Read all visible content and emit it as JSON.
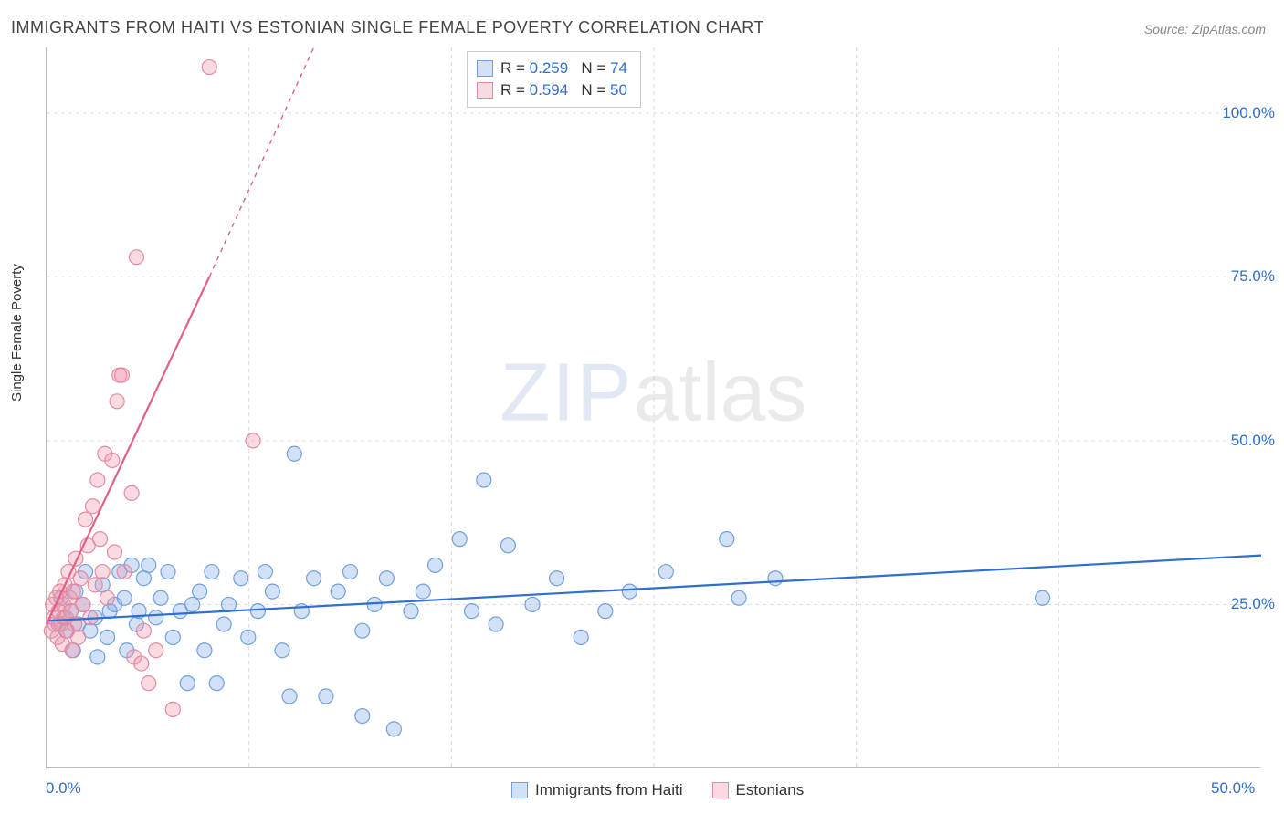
{
  "title": "IMMIGRANTS FROM HAITI VS ESTONIAN SINGLE FEMALE POVERTY CORRELATION CHART",
  "source": "Source: ZipAtlas.com",
  "ylabel": "Single Female Poverty",
  "watermark": {
    "part1": "ZIP",
    "part2": "atlas"
  },
  "chart": {
    "type": "scatter",
    "xlim": [
      0,
      50
    ],
    "ylim": [
      0,
      110
    ],
    "xticks": [
      0.0,
      50.0
    ],
    "xtick_labels": [
      "0.0%",
      "50.0%"
    ],
    "yticks": [
      25.0,
      50.0,
      75.0,
      100.0
    ],
    "ytick_labels": [
      "25.0%",
      "50.0%",
      "75.0%",
      "100.0%"
    ],
    "vgrid_at": [
      8.33,
      16.67,
      25.0,
      33.33,
      41.67
    ],
    "grid_color": "#dddddd",
    "axis_color": "#bbbbbb",
    "background_color": "#ffffff",
    "marker_radius": 8,
    "marker_stroke_width": 1.2,
    "line_width": 2.2,
    "series": [
      {
        "name": "Immigrants from Haiti",
        "color_fill": "rgba(130,170,230,0.35)",
        "color_stroke": "#6fa0e0",
        "line_color": "#2f6fd0",
        "R": "0.259",
        "N": "74",
        "trend": {
          "x1": 0,
          "y1": 22.5,
          "x2": 50,
          "y2": 32.5
        },
        "points": [
          [
            0.5,
            22
          ],
          [
            0.7,
            23
          ],
          [
            0.6,
            26
          ],
          [
            0.8,
            21
          ],
          [
            1.0,
            24
          ],
          [
            1.1,
            18
          ],
          [
            1.2,
            27
          ],
          [
            1.3,
            22
          ],
          [
            1.5,
            25
          ],
          [
            1.6,
            30
          ],
          [
            1.8,
            21
          ],
          [
            2.0,
            23
          ],
          [
            2.1,
            17
          ],
          [
            2.3,
            28
          ],
          [
            2.5,
            20
          ],
          [
            2.6,
            24
          ],
          [
            2.8,
            25
          ],
          [
            3.0,
            30
          ],
          [
            3.2,
            26
          ],
          [
            3.3,
            18
          ],
          [
            3.5,
            31
          ],
          [
            3.7,
            22
          ],
          [
            3.8,
            24
          ],
          [
            4.0,
            29
          ],
          [
            4.2,
            31
          ],
          [
            4.5,
            23
          ],
          [
            4.7,
            26
          ],
          [
            5.0,
            30
          ],
          [
            5.2,
            20
          ],
          [
            5.5,
            24
          ],
          [
            5.8,
            13
          ],
          [
            6.0,
            25
          ],
          [
            6.3,
            27
          ],
          [
            6.5,
            18
          ],
          [
            6.8,
            30
          ],
          [
            7.0,
            13
          ],
          [
            7.3,
            22
          ],
          [
            7.5,
            25
          ],
          [
            8.0,
            29
          ],
          [
            8.3,
            20
          ],
          [
            8.7,
            24
          ],
          [
            9.0,
            30
          ],
          [
            9.3,
            27
          ],
          [
            9.7,
            18
          ],
          [
            10.0,
            11
          ],
          [
            10.2,
            48
          ],
          [
            10.5,
            24
          ],
          [
            11.0,
            29
          ],
          [
            11.5,
            11
          ],
          [
            12.0,
            27
          ],
          [
            12.5,
            30
          ],
          [
            13.0,
            21
          ],
          [
            13.5,
            25
          ],
          [
            13.0,
            8
          ],
          [
            14.0,
            29
          ],
          [
            14.3,
            6
          ],
          [
            15.0,
            24
          ],
          [
            15.5,
            27
          ],
          [
            16.0,
            31
          ],
          [
            17.0,
            35
          ],
          [
            17.5,
            24
          ],
          [
            18.0,
            44
          ],
          [
            18.5,
            22
          ],
          [
            19.0,
            34
          ],
          [
            20.0,
            25
          ],
          [
            21.0,
            29
          ],
          [
            22.0,
            20
          ],
          [
            23.0,
            24
          ],
          [
            24.0,
            27
          ],
          [
            25.5,
            30
          ],
          [
            28.0,
            35
          ],
          [
            28.5,
            26
          ],
          [
            30.0,
            29
          ],
          [
            41.0,
            26
          ]
        ]
      },
      {
        "name": "Estonians",
        "color_fill": "rgba(240,150,170,0.35)",
        "color_stroke": "#e48aa0",
        "line_color": "#e06088",
        "R": "0.594",
        "N": "50",
        "trend": {
          "x1": 0,
          "y1": 22,
          "x2": 6.7,
          "y2": 75
        },
        "trend_dash": {
          "x1": 6.7,
          "y1": 75,
          "x2": 11,
          "y2": 110
        },
        "points": [
          [
            0.2,
            21
          ],
          [
            0.3,
            23
          ],
          [
            0.25,
            25
          ],
          [
            0.35,
            22
          ],
          [
            0.4,
            26
          ],
          [
            0.45,
            20
          ],
          [
            0.5,
            24
          ],
          [
            0.55,
            27
          ],
          [
            0.6,
            22
          ],
          [
            0.65,
            19
          ],
          [
            0.7,
            25
          ],
          [
            0.75,
            28
          ],
          [
            0.8,
            23
          ],
          [
            0.85,
            21
          ],
          [
            0.9,
            30
          ],
          [
            0.95,
            26
          ],
          [
            1.0,
            24
          ],
          [
            1.05,
            18
          ],
          [
            1.1,
            27
          ],
          [
            1.15,
            22
          ],
          [
            1.2,
            32
          ],
          [
            1.3,
            20
          ],
          [
            1.4,
            29
          ],
          [
            1.5,
            25
          ],
          [
            1.6,
            38
          ],
          [
            1.7,
            34
          ],
          [
            1.8,
            23
          ],
          [
            1.9,
            40
          ],
          [
            2.0,
            28
          ],
          [
            2.1,
            44
          ],
          [
            2.2,
            35
          ],
          [
            2.3,
            30
          ],
          [
            2.4,
            48
          ],
          [
            2.5,
            26
          ],
          [
            2.7,
            47
          ],
          [
            2.8,
            33
          ],
          [
            2.9,
            56
          ],
          [
            3.0,
            60
          ],
          [
            3.1,
            60
          ],
          [
            3.2,
            30
          ],
          [
            3.5,
            42
          ],
          [
            3.6,
            17
          ],
          [
            3.7,
            78
          ],
          [
            3.9,
            16
          ],
          [
            4.2,
            13
          ],
          [
            4.5,
            18
          ],
          [
            5.2,
            9
          ],
          [
            6.7,
            107
          ],
          [
            8.5,
            50
          ],
          [
            4.0,
            21
          ]
        ]
      }
    ]
  },
  "legend_top": {
    "R_label": "R =",
    "N_label": "N ="
  },
  "legend_bottom": {
    "items": [
      "Immigrants from Haiti",
      "Estonians"
    ]
  }
}
